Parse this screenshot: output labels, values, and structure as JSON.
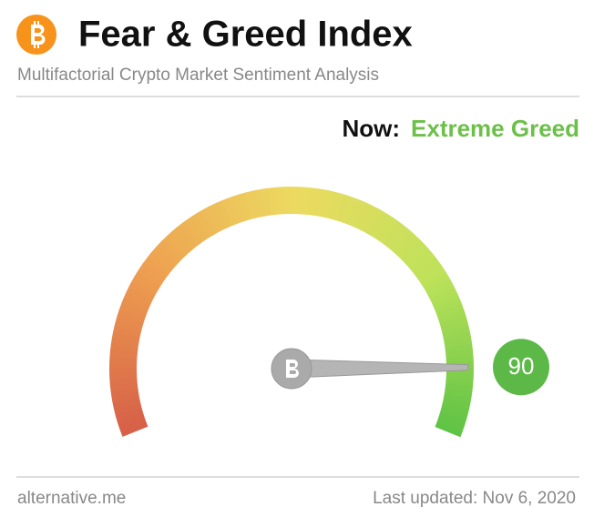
{
  "chart_data": {
    "type": "gauge",
    "title": "Fear & Greed Index",
    "subtitle": "Multifactorial Crypto Market Sentiment Analysis",
    "now_label": "Now:",
    "classification": "Extreme Greed",
    "value": 90,
    "ylim": [
      0,
      100
    ],
    "source": "alternative.me",
    "updated": "Last updated: Nov 6, 2020"
  }
}
